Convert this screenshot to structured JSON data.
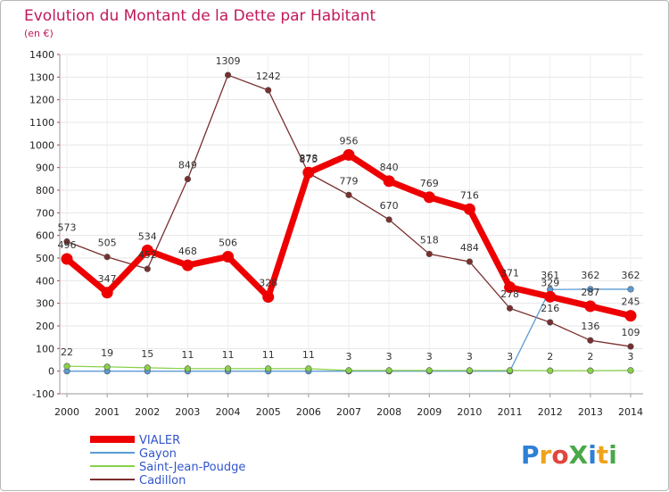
{
  "chart_data": {
    "type": "line",
    "title": "Evolution du Montant de la Dette par Habitant",
    "subtitle": "(en €)",
    "xlabel": "",
    "ylabel": "",
    "ylim": [
      -100,
      1400
    ],
    "yticks": [
      -100,
      0,
      100,
      200,
      300,
      400,
      500,
      600,
      700,
      800,
      900,
      1000,
      1100,
      1200,
      1300,
      1400
    ],
    "categories": [
      "2000",
      "2001",
      "2002",
      "2003",
      "2004",
      "2005",
      "2006",
      "2007",
      "2008",
      "2009",
      "2010",
      "2011",
      "2012",
      "2013",
      "2014"
    ],
    "series": [
      {
        "name": "VIALER",
        "color": "#ee0000",
        "values": [
          496,
          347,
          534,
          468,
          506,
          328,
          878,
          956,
          840,
          769,
          716,
          371,
          329,
          287,
          245
        ],
        "labels": [
          "496",
          "347",
          "534",
          "468",
          "506",
          "328",
          "878",
          "956",
          "840",
          "769",
          "716",
          "371",
          "329",
          "287",
          "245"
        ]
      },
      {
        "name": "Gayon",
        "color": "#5b9bd5",
        "values": [
          0,
          0,
          0,
          0,
          0,
          0,
          0,
          0,
          0,
          0,
          0,
          0,
          361,
          362,
          362
        ],
        "labels": [
          "",
          "",
          "",
          "",
          "",
          "",
          "",
          "",
          "",
          "",
          "",
          "",
          "361",
          "362",
          "362"
        ]
      },
      {
        "name": "Saint-Jean-Poudge",
        "color": "#88d24a",
        "values": [
          22,
          19,
          15,
          11,
          11,
          11,
          11,
          3,
          3,
          3,
          3,
          3,
          2,
          2,
          3
        ],
        "labels": [
          "22",
          "19",
          "15",
          "11",
          "11",
          "11",
          "11",
          "3",
          "3",
          "3",
          "3",
          "3",
          "2",
          "2",
          "3"
        ]
      },
      {
        "name": "Cadillon",
        "color": "#7a2e2e",
        "values": [
          573,
          505,
          452,
          849,
          1309,
          1242,
          875,
          779,
          670,
          518,
          484,
          278,
          216,
          136,
          109
        ],
        "labels": [
          "573",
          "505",
          "452",
          "849",
          "1309",
          "1242",
          "875",
          "779",
          "670",
          "518",
          "484",
          "278",
          "216",
          "136",
          "109"
        ]
      }
    ],
    "legend": [
      "VIALER",
      "Gayon",
      "Saint-Jean-Poudge",
      "Cadillon"
    ]
  },
  "logo": {
    "text": "ProXiti",
    "letters": [
      {
        "ch": "P",
        "color": "#2f7fd6"
      },
      {
        "ch": "r",
        "color": "#f0a21c"
      },
      {
        "ch": "o",
        "color": "#e0463e"
      },
      {
        "ch": "X",
        "color": "#4aa84a"
      },
      {
        "ch": "i",
        "color": "#2f7fd6"
      },
      {
        "ch": "t",
        "color": "#f0a21c"
      },
      {
        "ch": "i",
        "color": "#4aa84a"
      }
    ]
  }
}
